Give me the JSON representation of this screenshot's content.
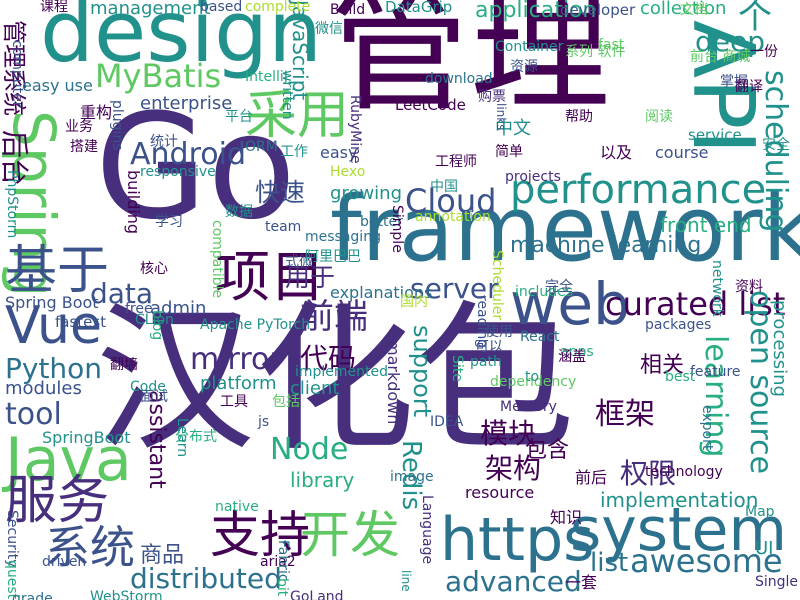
{
  "palette": {
    "p1": "#440154",
    "p2": "#472f7d",
    "p3": "#3b528b",
    "p4": "#2c728e",
    "p5": "#21918c",
    "p6": "#28ae80",
    "p7": "#5ec962",
    "p8": "#addc30",
    "p9": "#fde725"
  },
  "words": [
    {
      "text": "汉化包",
      "color": "#472f7d"
    },
    {
      "text": "管理",
      "color": "#440154"
    },
    {
      "text": "Go",
      "color": "#472f7d"
    },
    {
      "text": "framework",
      "color": "#2c728e"
    },
    {
      "text": "design",
      "color": "#21918c"
    },
    {
      "text": "API",
      "color": "#21918c"
    },
    {
      "text": "web",
      "color": "#3b528b"
    },
    {
      "text": "https",
      "color": "#2c728e"
    },
    {
      "text": "system",
      "color": "#2c728e"
    },
    {
      "text": "Java",
      "color": "#5ec962"
    },
    {
      "text": "Vue",
      "color": "#3b528b"
    },
    {
      "text": "Spring",
      "color": "#5ec962"
    },
    {
      "text": "项目",
      "color": "#440154"
    },
    {
      "text": "采用",
      "color": "#5ec962"
    },
    {
      "text": "基于",
      "color": "#3b528b"
    },
    {
      "text": "服务",
      "color": "#472f7d"
    },
    {
      "text": "开发",
      "color": "#5ec962"
    },
    {
      "text": "系统",
      "color": "#3b528b"
    },
    {
      "text": "支持",
      "color": "#440154"
    },
    {
      "text": "performance",
      "color": "#21918c"
    },
    {
      "text": "curated list",
      "color": "#440154"
    },
    {
      "text": "awesome",
      "color": "#2c728e"
    },
    {
      "text": "list",
      "color": "#2c728e"
    },
    {
      "text": "Android",
      "color": "#3b528b"
    },
    {
      "text": "Cloud",
      "color": "#3b528b"
    },
    {
      "text": "MyBatis",
      "color": "#5ec962"
    },
    {
      "text": "scheduling",
      "color": "#21918c"
    },
    {
      "text": "open source",
      "color": "#21918c"
    },
    {
      "text": "deep",
      "color": "#21918c"
    },
    {
      "text": "个",
      "color": "#21918c"
    },
    {
      "text": "data",
      "color": "#3b528b"
    },
    {
      "text": "server",
      "color": "#3b528b"
    },
    {
      "text": "mirror",
      "color": "#472f7d"
    },
    {
      "text": "tool",
      "color": "#3b528b"
    },
    {
      "text": "Python",
      "color": "#2c728e"
    },
    {
      "text": "前端",
      "color": "#472f7d"
    },
    {
      "text": "快速",
      "color": "#3b528b"
    },
    {
      "text": "用于",
      "color": "#472f7d"
    },
    {
      "text": "后台",
      "color": "#440154"
    },
    {
      "text": "管理系统",
      "color": "#440154"
    },
    {
      "text": "Node",
      "color": "#28ae80"
    },
    {
      "text": "Redis",
      "color": "#21918c"
    },
    {
      "text": "distributed",
      "color": "#2c728e"
    },
    {
      "text": "advanced",
      "color": "#2c728e"
    },
    {
      "text": "learning",
      "color": "#28ae80"
    },
    {
      "text": "support",
      "color": "#21918c"
    },
    {
      "text": "assistant",
      "color": "#440154"
    },
    {
      "text": "模块",
      "color": "#440154"
    },
    {
      "text": "架构",
      "color": "#440154"
    },
    {
      "text": "代码",
      "color": "#440154"
    },
    {
      "text": "UI",
      "color": "#21918c"
    },
    {
      "text": "application",
      "color": "#28ae80"
    },
    {
      "text": "management",
      "color": "#21918c"
    },
    {
      "text": "JavaScript",
      "color": "#21918c"
    },
    {
      "text": "machine learning",
      "color": "#2c728e"
    },
    {
      "text": "front end",
      "color": "#28ae80"
    },
    {
      "text": "processing",
      "color": "#21918c"
    },
    {
      "text": "library",
      "color": "#28ae80"
    },
    {
      "text": "client",
      "color": "#21918c"
    },
    {
      "text": "platform",
      "color": "#21918c"
    },
    {
      "text": "框架",
      "color": "#440154"
    },
    {
      "text": "权限",
      "color": "#472f7d"
    },
    {
      "text": "商品",
      "color": "#3b528b"
    },
    {
      "text": "包含",
      "color": "#440154"
    },
    {
      "text": "相关",
      "color": "#440154"
    },
    {
      "text": "implementation",
      "color": "#21918c"
    },
    {
      "text": "resource",
      "color": "#440154"
    },
    {
      "text": "中文",
      "color": "#21918c"
    },
    {
      "text": "enterprise",
      "color": "#3b528b"
    },
    {
      "text": "growing",
      "color": "#21918c"
    },
    {
      "text": "building",
      "color": "#440154"
    },
    {
      "text": "admin",
      "color": "#3b528b"
    },
    {
      "text": "explanations",
      "color": "#2c728e"
    },
    {
      "text": "modules",
      "color": "#3b528b"
    },
    {
      "text": "Spring Boot",
      "color": "#3b528b"
    },
    {
      "text": "fastest",
      "color": "#3b528b"
    },
    {
      "text": "SpringBoot",
      "color": "#21918c"
    },
    {
      "text": "markdown",
      "color": "#472f7d"
    },
    {
      "text": "LeetCode",
      "color": "#440154"
    },
    {
      "text": "DataGrip",
      "color": "#21918c"
    },
    {
      "text": "collection",
      "color": "#28ae80"
    },
    {
      "text": "developer",
      "color": "#3b528b"
    },
    {
      "text": "easy use",
      "color": "#2c728e"
    },
    {
      "text": "easy",
      "color": "#3b528b"
    },
    {
      "text": "course",
      "color": "#3b528b"
    },
    {
      "text": "service",
      "color": "#21918c"
    },
    {
      "text": "projects",
      "color": "#472f7d"
    },
    {
      "text": "links",
      "color": "#3b528b"
    },
    {
      "text": "Container",
      "color": "#21918c"
    },
    {
      "text": "工程师",
      "color": "#440154"
    },
    {
      "text": "重构",
      "color": "#440154"
    },
    {
      "text": "平台",
      "color": "#21918c"
    },
    {
      "text": "学习",
      "color": "#3b528b"
    },
    {
      "text": "核心",
      "color": "#440154"
    },
    {
      "text": "翻墙",
      "color": "#440154"
    },
    {
      "text": "面试",
      "color": "#3b528b"
    },
    {
      "text": "工具",
      "color": "#440154"
    },
    {
      "text": "知识",
      "color": "#440154"
    },
    {
      "text": "一套",
      "color": "#440154"
    },
    {
      "text": "前后",
      "color": "#440154"
    },
    {
      "text": "使用",
      "color": "#3b528b"
    },
    {
      "text": "可以",
      "color": "#3b528b"
    },
    {
      "text": "以及",
      "color": "#440154"
    },
    {
      "text": "简单",
      "color": "#440154"
    },
    {
      "text": "资源",
      "color": "#3b528b"
    },
    {
      "text": "微信",
      "color": "#21918c"
    },
    {
      "text": "文档",
      "color": "#5ec962"
    },
    {
      "text": "课程",
      "color": "#440154"
    },
    {
      "text": "掌握",
      "color": "#3b528b"
    },
    {
      "text": "安全",
      "color": "#21918c"
    },
    {
      "text": "翻译",
      "color": "#440154"
    },
    {
      "text": "搭建",
      "color": "#440154"
    },
    {
      "text": "业务",
      "color": "#440154"
    },
    {
      "text": "based",
      "color": "#3b528b"
    },
    {
      "text": "complete",
      "color": "#addc30"
    },
    {
      "text": "Build",
      "color": "#440154"
    },
    {
      "text": "IntelliJ",
      "color": "#28ae80"
    },
    {
      "text": "ORM",
      "color": "#2c728e"
    },
    {
      "text": "responsive",
      "color": "#21918c"
    },
    {
      "text": "Hexo",
      "color": "#addc30"
    },
    {
      "text": "RubyMine",
      "color": "#472f7d"
    },
    {
      "text": "Apache PyTorch",
      "color": "#21918c"
    },
    {
      "text": "React",
      "color": "#2c728e"
    },
    {
      "text": "apps",
      "color": "#28ae80"
    },
    {
      "text": "feature",
      "color": "#3b528b"
    },
    {
      "text": "packages",
      "color": "#3b528b"
    },
    {
      "text": "best",
      "color": "#28ae80"
    },
    {
      "text": "Memory",
      "color": "#472f7d"
    },
    {
      "text": "technology",
      "color": "#440154"
    },
    {
      "text": "image",
      "color": "#2c728e"
    },
    {
      "text": "IDEA",
      "color": "#3b528b"
    },
    {
      "text": "aria2",
      "color": "#440154"
    },
    {
      "text": "native",
      "color": "#28ae80"
    },
    {
      "text": "Code",
      "color": "#21918c"
    },
    {
      "text": "blog",
      "color": "#28ae80"
    },
    {
      "text": "free",
      "color": "#3b528b"
    },
    {
      "text": "CLion",
      "color": "#21918c"
    },
    {
      "text": "Learn",
      "color": "#21918c"
    },
    {
      "text": "GoLand",
      "color": "#472f7d"
    },
    {
      "text": "WebStorm",
      "color": "#21918c"
    },
    {
      "text": "driven",
      "color": "#3b528b"
    },
    {
      "text": "Language",
      "color": "#472f7d"
    },
    {
      "text": "Single",
      "color": "#472f7d"
    },
    {
      "text": "Map",
      "color": "#21918c"
    },
    {
      "text": "Security",
      "color": "#3b528b"
    },
    {
      "text": "questions",
      "color": "#28ae80"
    },
    {
      "text": "grade",
      "color": "#2c728e"
    },
    {
      "text": "PhpStorm",
      "color": "#21918c"
    },
    {
      "text": "computer",
      "color": "#3b528b"
    },
    {
      "text": "written",
      "color": "#21918c"
    },
    {
      "text": "plugins",
      "color": "#3b528b"
    },
    {
      "text": "download",
      "color": "#2c728e"
    },
    {
      "text": "fast",
      "color": "#5ec962"
    },
    {
      "text": "better",
      "color": "#2c728e"
    },
    {
      "text": "annotation",
      "color": "#addc30"
    },
    {
      "text": "team",
      "color": "#3b528b"
    },
    {
      "text": "compatible",
      "color": "#5ec962"
    },
    {
      "text": "implemented",
      "color": "#21918c"
    },
    {
      "text": "Scheduler",
      "color": "#addc30"
    },
    {
      "text": "includes",
      "color": "#28ae80"
    },
    {
      "text": "reading",
      "color": "#3b528b"
    },
    {
      "text": "line",
      "color": "#21918c"
    },
    {
      "text": "messaging",
      "color": "#2c728e"
    },
    {
      "text": "network",
      "color": "#21918c"
    },
    {
      "text": "export",
      "color": "#2c728e"
    },
    {
      "text": "dependency",
      "color": "#5ec962"
    },
    {
      "text": "path",
      "color": "#21918c"
    },
    {
      "text": "Site",
      "color": "#28ae80"
    },
    {
      "text": "Simple",
      "color": "#440154"
    },
    {
      "text": "Fabric",
      "color": "#2c728e"
    },
    {
      "text": "bit ly",
      "color": "#28ae80"
    },
    {
      "text": "to",
      "color": "#21918c"
    },
    {
      "text": "js",
      "color": "#3b528b"
    },
    {
      "text": "分布式",
      "color": "#28ae80"
    },
    {
      "text": "包括",
      "color": "#5ec962"
    },
    {
      "text": "涵盖",
      "color": "#440154"
    },
    {
      "text": "完全",
      "color": "#3b528b"
    },
    {
      "text": "式微",
      "color": "#3b528b"
    },
    {
      "text": "国内",
      "color": "#addc30"
    },
    {
      "text": "阿里巴巴",
      "color": "#21918c"
    },
    {
      "text": "数据",
      "color": "#21918c"
    },
    {
      "text": "中国",
      "color": "#21918c"
    },
    {
      "text": "购票",
      "color": "#472f7d"
    },
    {
      "text": "工作",
      "color": "#21918c"
    },
    {
      "text": "统计",
      "color": "#3b528b"
    },
    {
      "text": "帮助",
      "color": "#440154"
    },
    {
      "text": "阅读",
      "color": "#5ec962"
    },
    {
      "text": "系列 软件",
      "color": "#5ec962"
    },
    {
      "text": "前台 商城",
      "color": "#5ec962"
    },
    {
      "text": "一份",
      "color": "#440154"
    },
    {
      "text": "资料",
      "color": "#440154"
    },
    {
      "text": "设计",
      "color": "#3b528b"
    },
    {
      "text": "搜索",
      "color": "#440154"
    },
    {
      "text": "关键字",
      "color": "#440154"
    },
    {
      "text": "构建",
      "color": "#21918c"
    },
    {
      "text": "下载",
      "color": "#addc30"
    },
    {
      "text": "上网",
      "color": "#440154"
    },
    {
      "text": "识别",
      "color": "#440154"
    },
    {
      "text": "分析",
      "color": "#472f7d"
    },
    {
      "text": "任务调度",
      "color": "#3b528b"
    }
  ]
}
